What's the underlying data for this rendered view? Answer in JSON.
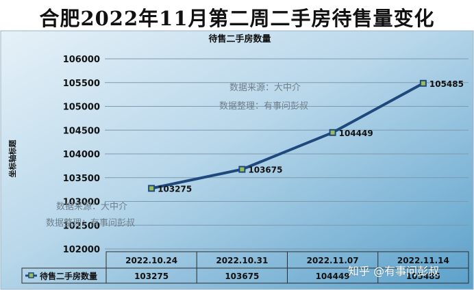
{
  "banner_title": "合肥2022年11月第二周二手房待售量变化",
  "watermark_lines": [
    "数据来源：大中介",
    "数据整理：有事问彭叔"
  ],
  "zhihu_mark": "知乎 @有事问彭叔",
  "colors": {
    "line": "#1f497d",
    "marker_fill": "#9bbb59",
    "grid": "#7f9aae",
    "background_light": "#dcebf5",
    "background_dark": "#5fa3cc"
  },
  "chart_data": {
    "type": "line",
    "title": "待售二手房数量",
    "ylabel": "坐标轴标题",
    "xlabel": "",
    "categories": [
      "2022.10.24",
      "2022.10.31",
      "2022.11.07",
      "2022.11.14"
    ],
    "series": [
      {
        "name": "待售二手房数量",
        "values": [
          103275,
          103675,
          104449,
          105485
        ]
      }
    ],
    "data_labels": [
      "103275",
      "103675",
      "104449",
      "105485"
    ],
    "ylim": [
      102000,
      106000
    ],
    "yticks": [
      "102000",
      "102500",
      "103000",
      "103500",
      "104000",
      "104500",
      "105000",
      "105500",
      "106000"
    ],
    "grid": true,
    "legend": "data-table",
    "data_table": true
  }
}
